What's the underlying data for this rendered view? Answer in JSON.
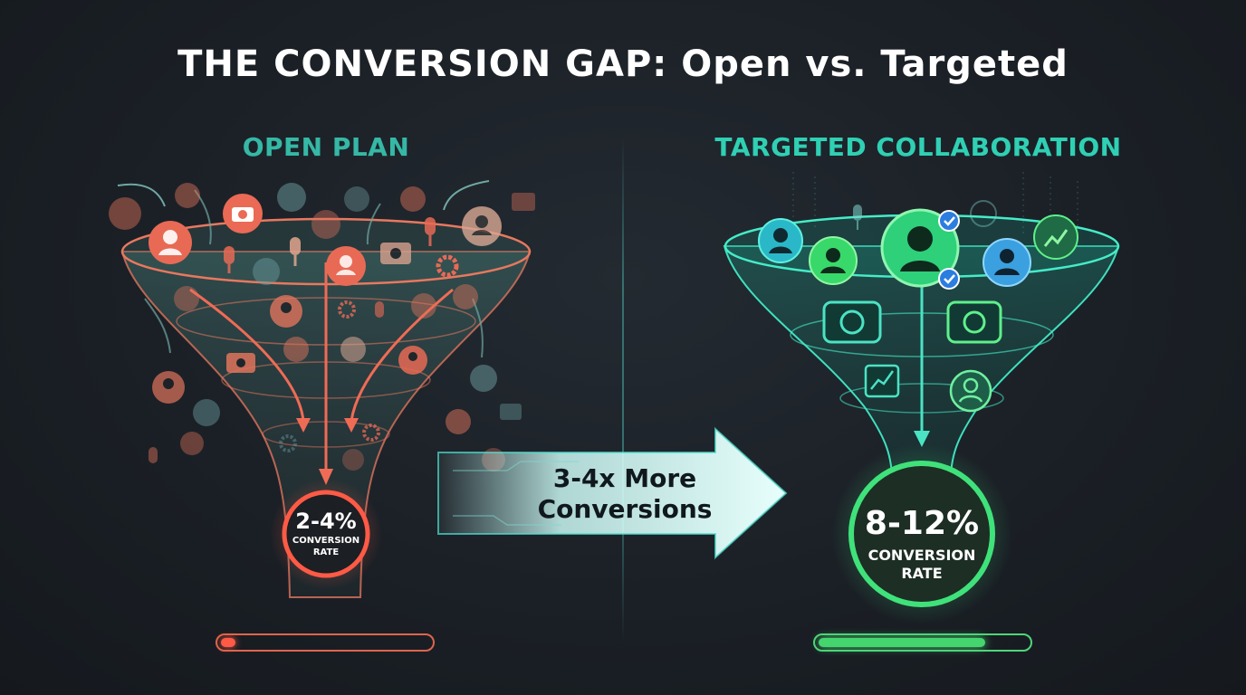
{
  "title": "THE CONVERSION GAP: Open vs. Targeted",
  "left_panel": {
    "title": "OPEN PLAN",
    "rate_value": "2-4%",
    "rate_label_1": "CONVERSION",
    "rate_label_2": "RATE",
    "progress_fraction": 0.07,
    "accent_color": "#e8654f"
  },
  "right_panel": {
    "title": "TARGETED COLLABORATION",
    "rate_value": "8-12%",
    "rate_label_1": "CONVERSION",
    "rate_label_2": "RATE",
    "progress_fraction": 0.8,
    "accent_color": "#3fd27a"
  },
  "arrow": {
    "line1": "3-4x More",
    "line2": "Conversions"
  },
  "icons": [
    "person-icon",
    "camera-icon",
    "microphone-icon",
    "gear-icon",
    "chart-icon",
    "verified-badge-icon",
    "headset-person-icon"
  ]
}
